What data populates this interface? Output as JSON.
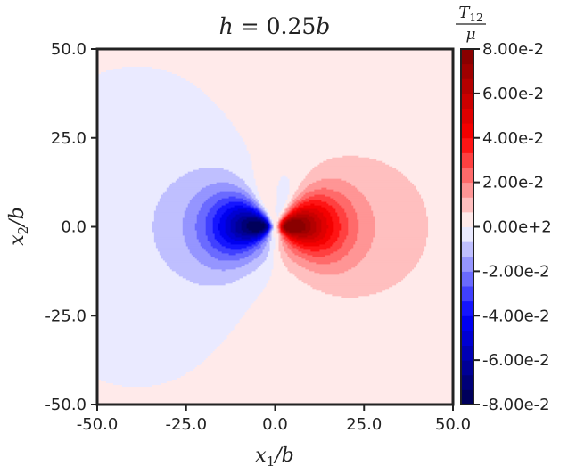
{
  "chart_data": {
    "type": "heatmap",
    "title": "h = 0.25b",
    "title_parts": {
      "var": "h",
      "op": " = 0.25",
      "unit": "b"
    },
    "xlabel": "x1/b",
    "xlabel_parts": {
      "var": "x",
      "sub": "1",
      "tail": "/b"
    },
    "ylabel": "x2/b",
    "ylabel_parts": {
      "var": "x",
      "sub": "2",
      "tail": "/b"
    },
    "xlim": [
      -50,
      50
    ],
    "ylim": [
      -50,
      50
    ],
    "x_ticks": [
      -50,
      -25,
      0,
      25,
      50
    ],
    "x_tick_labels": [
      "-50.0",
      "-25.0",
      "0.0",
      "25.0",
      "50.0"
    ],
    "y_ticks": [
      50,
      25,
      0,
      -25,
      -50
    ],
    "y_tick_labels": [
      "50.0",
      "25.0",
      "0.0",
      "-25.0",
      "-50.0"
    ],
    "grid": false,
    "field": "T12/mu",
    "colorbar": {
      "label": "T12/μ",
      "label_parts": {
        "num_var": "T",
        "num_sub": "12",
        "den": "μ"
      },
      "range": [
        -0.08,
        0.08
      ],
      "levels": 24,
      "placement": "right",
      "ticks": [
        0.08,
        0.06,
        0.04,
        0.02,
        0.0,
        -0.02,
        -0.04,
        -0.06,
        -0.08
      ],
      "tick_labels": [
        "8.00e-2",
        "6.00e-2",
        "4.00e-2",
        "2.00e-2",
        "0.00e+2",
        "-2.00e-2",
        "-4.00e-2",
        "-6.00e-2",
        "-8.00e-2"
      ],
      "colormap": "seismic",
      "colors": {
        "min": "#00004c",
        "neg": "#0000ff",
        "zero": "#ffffff",
        "pos": "#ff0000",
        "max": "#7f0000"
      }
    }
  }
}
